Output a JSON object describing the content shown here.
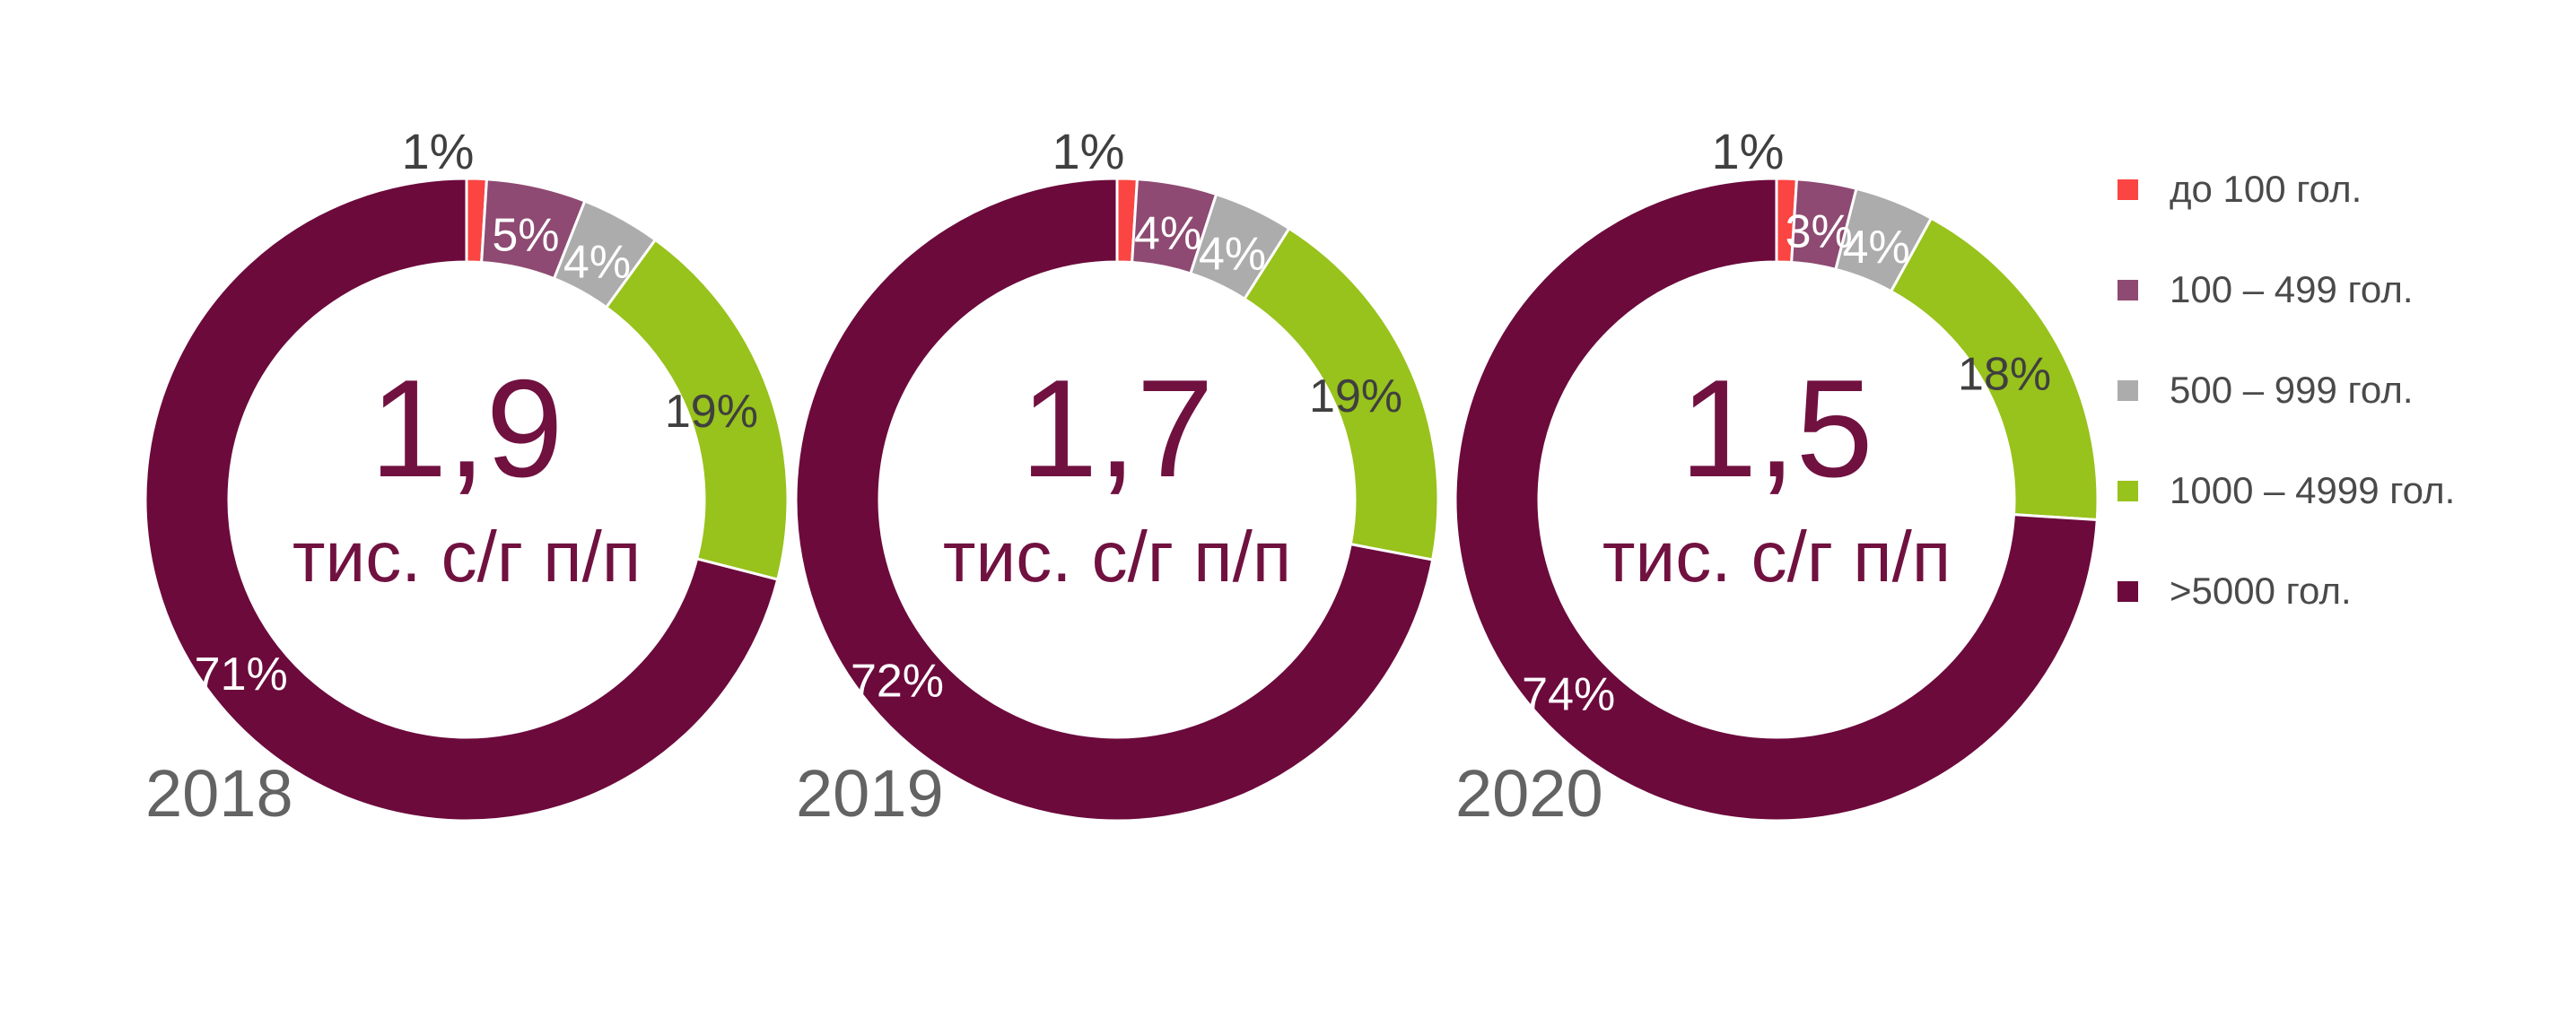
{
  "page": {
    "background": "#FFFFFF"
  },
  "palette": {
    "segment_colors": [
      "#FA4542",
      "#8E4A72",
      "#ACACAC",
      "#98C21C",
      "#6C0A3C"
    ],
    "center_text": "#701140",
    "dark_label": "#3F3F3F",
    "white_label": "#FFFFFF",
    "year_label": "#636363",
    "legend_text": "#4A4A4A",
    "separator": "#FFFFFF"
  },
  "legend": {
    "position": "right",
    "items": [
      {
        "label": "до 100 гол.",
        "color": "#FA4542"
      },
      {
        "label": "100 – 499 гол.",
        "color": "#8E4A72"
      },
      {
        "label": "500 – 999 гол.",
        "color": "#ACACAC"
      },
      {
        "label": "1000 – 4999 гол.",
        "color": "#98C21C"
      },
      {
        "label": ">5000 гол.",
        "color": "#6C0A3C"
      }
    ]
  },
  "chart_data": [
    {
      "type": "pie",
      "title": "2018",
      "center_value": "1,9",
      "center_unit": "тис. с/г п/п",
      "categories": [
        "до 100 гол.",
        "100 – 499 гол.",
        "500 – 999 гол.",
        "1000 – 4999 гол.",
        ">5000 гол."
      ],
      "values": [
        1,
        5,
        4,
        19,
        71
      ],
      "data_labels": [
        "1%",
        "5%",
        "4%",
        "19%",
        "71%"
      ],
      "unit": "%",
      "legend_position": "right"
    },
    {
      "type": "pie",
      "title": "2019",
      "center_value": "1,7",
      "center_unit": "тис. с/г п/п",
      "categories": [
        "до 100 гол.",
        "100 – 499 гол.",
        "500 – 999 гол.",
        "1000 – 4999 гол.",
        ">5000 гол."
      ],
      "values": [
        1,
        4,
        4,
        19,
        72
      ],
      "data_labels": [
        "1%",
        "4%",
        "4%",
        "19%",
        "72%"
      ],
      "unit": "%",
      "legend_position": "right"
    },
    {
      "type": "pie",
      "title": "2020",
      "center_value": "1,5",
      "center_unit": "тис. с/г п/п",
      "categories": [
        "до 100 гол.",
        "100 – 499 гол.",
        "500 – 999 гол.",
        "1000 – 4999 гол.",
        ">5000 гол."
      ],
      "values": [
        1,
        3,
        4,
        18,
        74
      ],
      "data_labels": [
        "1%",
        "3%",
        "4%",
        "18%",
        "74%"
      ],
      "unit": "%",
      "legend_position": "right"
    }
  ]
}
